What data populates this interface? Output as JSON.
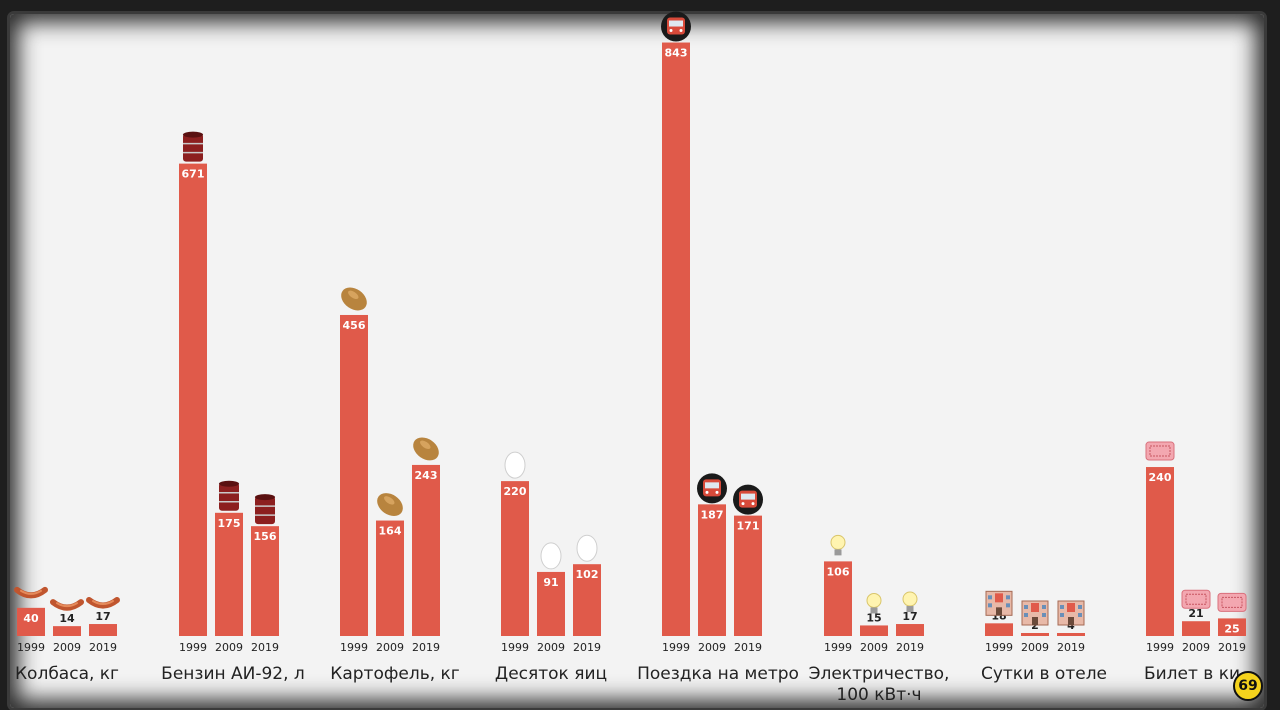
{
  "chart_data": {
    "type": "bar",
    "years": [
      "1999",
      "2009",
      "2019"
    ],
    "bar_color": "#e05a4a",
    "groups": [
      {
        "label": "Колбаса, кг",
        "values": [
          40,
          14,
          17
        ],
        "icon": "sausage-icon"
      },
      {
        "label": "Бензин АИ-92, л",
        "values": [
          671,
          175,
          156
        ],
        "icon": "fuel-barrel-icon"
      },
      {
        "label": "Картофель, кг",
        "values": [
          456,
          164,
          243
        ],
        "icon": "potato-icon"
      },
      {
        "label": "Десяток яиц",
        "values": [
          220,
          91,
          102
        ],
        "icon": "egg-icon"
      },
      {
        "label": "Поездка на метро",
        "values": [
          843,
          187,
          171
        ],
        "icon": "metro-train-icon"
      },
      {
        "label": [
          "Электричество,",
          "100 кВт·ч"
        ],
        "values": [
          106,
          15,
          17
        ],
        "icon": "light-bulb-icon"
      },
      {
        "label": "Сутки в отеле",
        "values": [
          18,
          2,
          4
        ],
        "icon": "hotel-icon"
      },
      {
        "label": "Билет в ки",
        "values": [
          240,
          21,
          25
        ],
        "icon": "cinema-ticket-icon"
      }
    ]
  },
  "logo": {
    "text": "69",
    "color": "#f5d31d"
  }
}
